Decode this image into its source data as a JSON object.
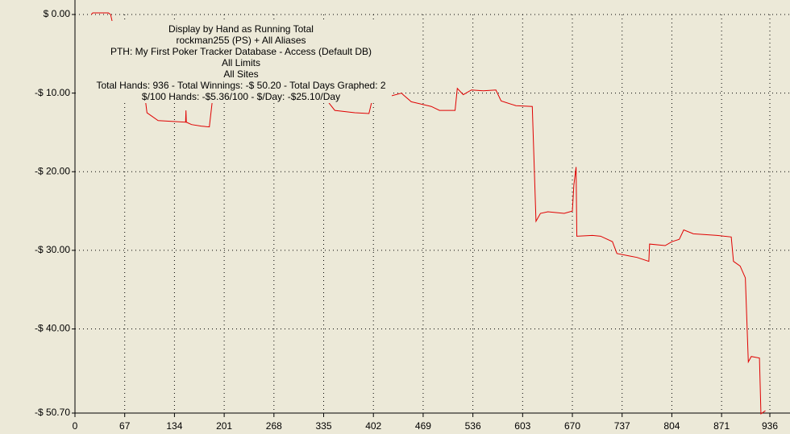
{
  "chart_data": {
    "type": "line",
    "annotation": [
      "Display by Hand as Running Total",
      "rockman255 (PS) + All Aliases",
      "PTH: My First Poker Tracker Database - Access (Default DB)",
      "All Limits",
      "All Sites",
      "Total Hands: 936 - Total Winnings: -$ 50.20 - Total Days Graphed: 2",
      "$/100 Hands: -$5.36/100 - $/Day: -$25.10/Day"
    ],
    "x": [
      22,
      24,
      45,
      48,
      60,
      95,
      97,
      112,
      149,
      149.5,
      150,
      157,
      170,
      181,
      185,
      340,
      350,
      377,
      396,
      400,
      440,
      442,
      453,
      480,
      491,
      512,
      515,
      523,
      534,
      550,
      567,
      574,
      594,
      616,
      621,
      627,
      637,
      659,
      670,
      672,
      675,
      676,
      697,
      708,
      724,
      730,
      746,
      757,
      773,
      774,
      795,
      804,
      814,
      820,
      833,
      865,
      884,
      887,
      896,
      903,
      907,
      911,
      922,
      924,
      930
    ],
    "values": [
      0,
      0.2,
      0.2,
      0,
      -5,
      -11,
      -12.5,
      -13.5,
      -13.7,
      -12.2,
      -13.7,
      -14.0,
      -14.2,
      -14.3,
      -11,
      -11,
      -12.2,
      -12.5,
      -12.6,
      -11,
      -10,
      -10.2,
      -11.1,
      -11.7,
      -12.2,
      -12.2,
      -9.4,
      -10.2,
      -9.6,
      -9.7,
      -9.6,
      -11.0,
      -11.6,
      -11.7,
      -26.3,
      -25.3,
      -25.1,
      -25.3,
      -25.0,
      -21.7,
      -19.4,
      -28.2,
      -28.1,
      -28.2,
      -28.9,
      -30.4,
      -30.7,
      -30.9,
      -31.4,
      -29.2,
      -29.4,
      -28.9,
      -28.6,
      -27.4,
      -27.9,
      -28.1,
      -28.3,
      -31.4,
      -32.0,
      -33.5,
      -44.2,
      -43.5,
      -43.7,
      -50.8,
      -50.4
    ],
    "color": "#e00000",
    "xlim": [
      0,
      936
    ],
    "xticks": [
      0,
      67,
      134,
      201,
      268,
      335,
      402,
      469,
      536,
      603,
      670,
      737,
      804,
      871,
      936
    ],
    "ylim": [
      -50.7,
      0
    ],
    "yticks": [
      {
        "value": 0,
        "label": "$ 0.00"
      },
      {
        "value": -10,
        "label": "-$ 10.00"
      },
      {
        "value": -20,
        "label": "-$ 20.00"
      },
      {
        "value": -30,
        "label": "-$ 30.00"
      },
      {
        "value": -40,
        "label": "-$ 40.00"
      },
      {
        "value": -50.7,
        "label": "-$ 50.70"
      }
    ],
    "grid": true
  }
}
